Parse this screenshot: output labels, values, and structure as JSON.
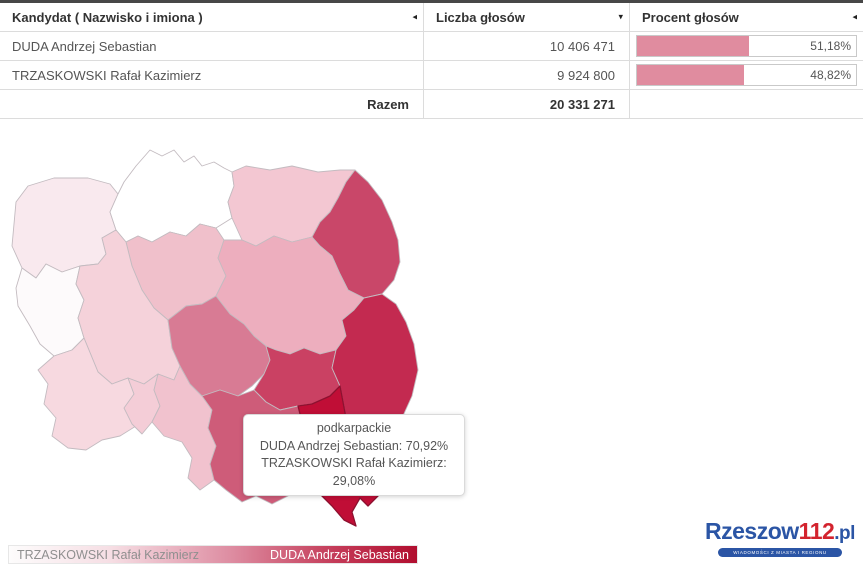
{
  "table": {
    "columns": [
      {
        "id": "kandydat",
        "label": "Kandydat ( Nazwisko i imiona )",
        "sort_glyph": "◂"
      },
      {
        "id": "liczba",
        "label": "Liczba głosów",
        "sort_glyph": "▾"
      },
      {
        "id": "procent",
        "label": "Procent głosów",
        "sort_glyph": "◂"
      }
    ],
    "rows": [
      {
        "candidate": "DUDA Andrzej Sebastian",
        "votes": "10 406 471",
        "percent_label": "51,18%",
        "percent_value": 51.18
      },
      {
        "candidate": "TRZASKOWSKI Rafał Kazimierz",
        "votes": "9 924 800",
        "percent_label": "48,82%",
        "percent_value": 48.82
      }
    ],
    "footer": {
      "label": "Razem",
      "total": "20 331 271"
    },
    "bar_color": "#e08c9f"
  },
  "map": {
    "hovered_region": "podkarpackie",
    "tooltip": {
      "region": "podkarpackie",
      "lines": [
        "DUDA Andrzej Sebastian: 70,92%",
        "TRZASKOWSKI Rafał Kazimierz: 29,08%"
      ]
    },
    "border_color": "#c3bbc0",
    "regions": [
      {
        "id": "zachodniopomorskie",
        "color": "#f9e9ee"
      },
      {
        "id": "pomorskie",
        "color": "#ffffff"
      },
      {
        "id": "warminsko-mazurskie",
        "color": "#f3c7d2"
      },
      {
        "id": "podlaskie",
        "color": "#c94769"
      },
      {
        "id": "kujawsko-pomorskie",
        "color": "#f0c0cb"
      },
      {
        "id": "mazowieckie",
        "color": "#edaebe"
      },
      {
        "id": "lubuskie",
        "color": "#fdfafb"
      },
      {
        "id": "wielkopolskie",
        "color": "#f5d2da"
      },
      {
        "id": "lodzkie",
        "color": "#d87b94"
      },
      {
        "id": "lubelskie",
        "color": "#c32a50"
      },
      {
        "id": "dolnoslaskie",
        "color": "#f7d9e0"
      },
      {
        "id": "opolskie",
        "color": "#f4cdd7"
      },
      {
        "id": "slaskie",
        "color": "#f1c2ce"
      },
      {
        "id": "swietokrzyskie",
        "color": "#ca4163"
      },
      {
        "id": "malopolskie",
        "color": "#ce5c79"
      },
      {
        "id": "podkarpackie",
        "color": "#c00e36"
      }
    ]
  },
  "legend": {
    "left_label": "TRZASKOWSKI Rafał Kazimierz",
    "right_label": "DUDA Andrzej Sebastian",
    "gradient": [
      "#fdfcfc",
      "#f6dee4",
      "#dd8ba0",
      "#c43b58",
      "#b10e2f"
    ]
  },
  "logo": {
    "name": "Rzeszow",
    "number": "112",
    "tld": ".pl",
    "tagline": "wiadomości z miasta i regionu",
    "blue": "#2b55a5",
    "red": "#d3232e"
  },
  "chart_data": [
    {
      "type": "table",
      "title": "",
      "columns": [
        "Kandydat ( Nazwisko i imiona )",
        "Liczba głosów",
        "Procent głosów"
      ],
      "rows": [
        [
          "DUDA Andrzej Sebastian",
          10406471,
          51.18
        ],
        [
          "TRZASKOWSKI Rafał Kazimierz",
          9924800,
          48.82
        ]
      ],
      "total_row": [
        "Razem",
        20331271,
        null
      ]
    },
    {
      "type": "heatmap",
      "subtype": "choropleth-map-poland-voivodeships",
      "hovered_region": "podkarpackie",
      "hovered_values": {
        "DUDA Andrzej Sebastian": 70.92,
        "TRZASKOWSKI Rafał Kazimierz": 29.08
      },
      "color_scale": {
        "low_label": "TRZASKOWSKI Rafał Kazimierz",
        "high_label": "DUDA Andrzej Sebastian",
        "low_color": "#ffffff",
        "high_color": "#b10e2f"
      },
      "legend_position": "bottom"
    }
  ]
}
